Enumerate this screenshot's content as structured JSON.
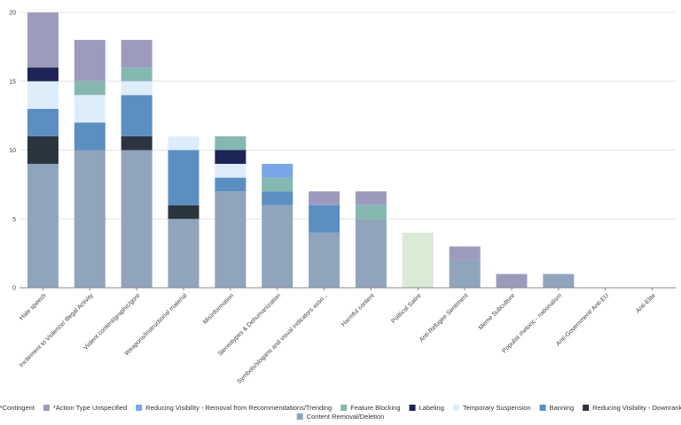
{
  "chart_data": {
    "type": "bar",
    "stacked": true,
    "title": "",
    "xlabel": "",
    "ylabel": "",
    "ylim": [
      0,
      20
    ],
    "yticks": [
      0,
      5,
      10,
      15,
      20
    ],
    "grid": true,
    "legend_position": "bottom",
    "categories": [
      "Hate speech",
      "Incitement to Violence/ Illegal Activity",
      "Violent content/graphic/gore",
      "Weapons/Instructional material",
      "Misinformation",
      "Stereotypes & Dehumanization",
      "Symbols/slogans and visual indicators asso...",
      "Harmful content",
      "Political Satire",
      "Anti-Refugee Sentiment",
      "Meme Subculture",
      "Populist rhetoric - nationalism",
      "Anti-Government/ Anti-EU",
      "Anti-Elite"
    ],
    "series": [
      {
        "name": "Content Removal/Deletion",
        "color": "#90a4bc",
        "values": [
          9,
          10,
          10,
          5,
          7,
          6,
          4,
          5,
          0,
          2,
          0,
          1,
          0,
          0
        ]
      },
      {
        "name": "Reducing Visibility - Downranking",
        "color": "#2b3540",
        "values": [
          2,
          0,
          1,
          1,
          0,
          0,
          0,
          0,
          0,
          0,
          0,
          0,
          0,
          0
        ]
      },
      {
        "name": "Banning",
        "color": "#5b8fc2",
        "values": [
          2,
          2,
          3,
          4,
          1,
          1,
          2,
          0,
          0,
          0,
          0,
          0,
          0,
          0
        ]
      },
      {
        "name": "Temporary Suspension",
        "color": "#ddeefa",
        "values": [
          2,
          2,
          1,
          1,
          1,
          0,
          0,
          0,
          0,
          0,
          0,
          0,
          0,
          0
        ]
      },
      {
        "name": "Labeling",
        "color": "#1d2456",
        "values": [
          1,
          0,
          0,
          0,
          1,
          0,
          0,
          0,
          0,
          0,
          0,
          0,
          0,
          0
        ]
      },
      {
        "name": "Feature Blocking",
        "color": "#86b8b2",
        "values": [
          0,
          1,
          1,
          0,
          1,
          1,
          0,
          1,
          0,
          0,
          0,
          0,
          0,
          0
        ]
      },
      {
        "name": "Reducing Visibility - Removal from Recommendations/Trending",
        "color": "#7aa6e8",
        "values": [
          0,
          0,
          0,
          0,
          0,
          1,
          0,
          0,
          0,
          0,
          0,
          0,
          0,
          0
        ]
      },
      {
        "name": "*Action Type Unspecified",
        "color": "#9d9bbd",
        "values": [
          4,
          3,
          2,
          0,
          0,
          0,
          1,
          1,
          0,
          1,
          1,
          0,
          0,
          0
        ]
      },
      {
        "name": "*Contingent",
        "color": "#dbead5",
        "values": [
          0,
          0,
          0,
          0,
          0,
          0,
          0,
          0,
          4,
          0,
          0,
          0,
          0,
          0
        ]
      }
    ],
    "legend_order_row1": [
      "*Contingent",
      "*Action Type Unspecified",
      "Reducing Visibility - Removal from Recommendations/Trending",
      "Feature Blocking",
      "Labeling",
      "Temporary Suspension",
      "Banning",
      "Reducing Visibility - Downranking"
    ],
    "legend_order_row2": [
      "Content Removal/Deletion"
    ]
  }
}
